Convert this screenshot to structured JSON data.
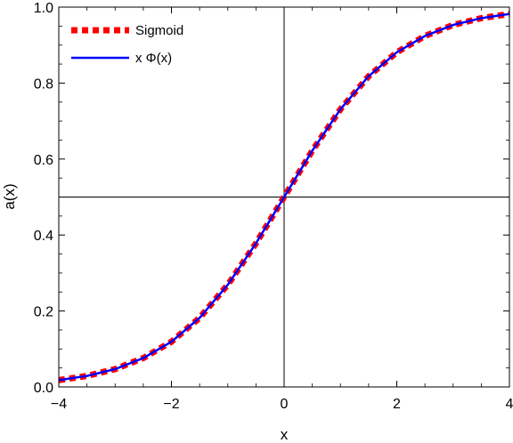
{
  "chart_data": {
    "type": "line",
    "title": "",
    "xlabel": "x",
    "ylabel": "a(x)",
    "xlim": [
      -4,
      4
    ],
    "ylim": [
      0,
      1
    ],
    "x_ticks": [
      -4,
      -2,
      0,
      2,
      4
    ],
    "x_tick_labels": [
      "−4",
      "−2",
      "0",
      "2",
      "4"
    ],
    "y_ticks": [
      0.0,
      0.2,
      0.4,
      0.6,
      0.8,
      1.0
    ],
    "y_tick_labels": [
      "0.0",
      "0.2",
      "0.4",
      "0.6",
      "0.8",
      "1.0"
    ],
    "grid": false,
    "reference_lines": {
      "x": 0,
      "y": 0.5
    },
    "legend_position": "top-left",
    "series": [
      {
        "name": "Sigmoid",
        "color": "#ff0000",
        "style": "dashed",
        "x": [
          -4,
          -3.5,
          -3,
          -2.5,
          -2,
          -1.5,
          -1,
          -0.5,
          0,
          0.5,
          1,
          1.5,
          2,
          2.5,
          3,
          3.5,
          4
        ],
        "y": [
          0.018,
          0.029,
          0.047,
          0.076,
          0.119,
          0.182,
          0.269,
          0.378,
          0.5,
          0.622,
          0.731,
          0.818,
          0.881,
          0.924,
          0.953,
          0.971,
          0.982
        ]
      },
      {
        "name": "x Φ(x)",
        "color": "#0000ff",
        "style": "solid",
        "x": [
          -4,
          -3.5,
          -3,
          -2.5,
          -2,
          -1.5,
          -1,
          -0.5,
          0,
          0.5,
          1,
          1.5,
          2,
          2.5,
          3,
          3.5,
          4
        ],
        "y": [
          0.018,
          0.029,
          0.047,
          0.076,
          0.119,
          0.182,
          0.269,
          0.378,
          0.5,
          0.622,
          0.731,
          0.818,
          0.881,
          0.924,
          0.953,
          0.971,
          0.982
        ]
      }
    ]
  }
}
